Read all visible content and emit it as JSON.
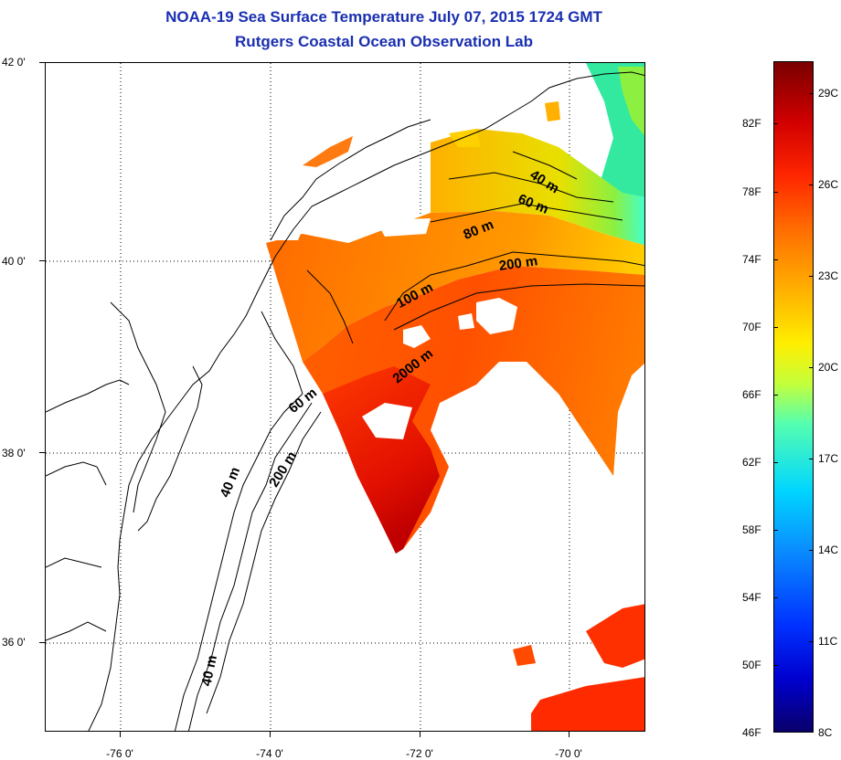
{
  "title": {
    "line1": "NOAA-19 Sea Surface Temperature July 07, 2015 1724 GMT",
    "line2": "Rutgers Coastal Ocean Observation Lab"
  },
  "axes": {
    "y_labels": [
      "42 0'",
      "40 0'",
      "38 0'",
      "36 0'"
    ],
    "x_labels": [
      "-76 0'",
      "-74 0'",
      "-72 0'",
      "-70 0'"
    ]
  },
  "isobath_labels": [
    "40 m",
    "60 m",
    "80 m",
    "200 m",
    "100 m",
    "2000 m",
    "60 m",
    "200 m",
    "40 m",
    "40 m"
  ],
  "colorbar": {
    "fahrenheit_labels": [
      "82F",
      "78F",
      "74F",
      "70F",
      "66F",
      "62F",
      "58F",
      "54F",
      "50F",
      "46F"
    ],
    "celsius_labels": [
      "29C",
      "26C",
      "23C",
      "20C",
      "17C",
      "14C",
      "11C",
      "8C"
    ],
    "colors": [
      "#08006a",
      "#0000d0",
      "#0a8cff",
      "#00d6ff",
      "#c4ff3a",
      "#ffee00",
      "#ff6d00",
      "#ff2600",
      "#7a0000"
    ]
  }
}
